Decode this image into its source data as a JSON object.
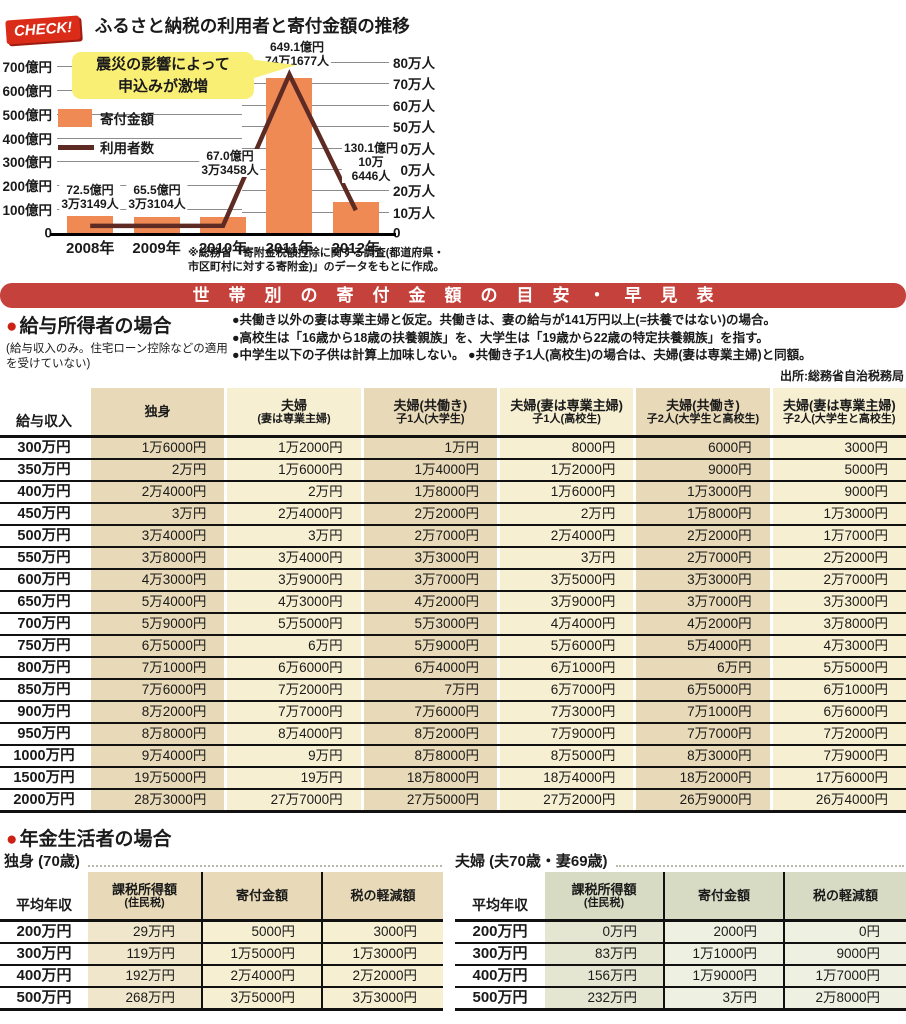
{
  "colors": {
    "bar": "#ef8a55",
    "line": "#5d2a24",
    "callout": "#f9ef75",
    "banner": "#c5423c",
    "badge": "#da2c18",
    "tan": "#e8dab8",
    "cream": "#f6efd2",
    "tan_light": "#efe6cb",
    "green_head": "#d8dbc4",
    "green_mid": "#e4e6d2",
    "green_light": "#eef0e1"
  },
  "chart": {
    "badge": "CHECK!",
    "title": "ふるさと納税の利用者と寄付金額の推移",
    "callout_line1": "震災の影響によって",
    "callout_line2": "申込みが激増",
    "legend_bar": "寄付金額",
    "legend_line": "利用者数",
    "left_axis_labels": [
      "700億円",
      "600億円",
      "500億円",
      "400億円",
      "300億円",
      "200億円",
      "100億円",
      "0"
    ],
    "right_axis_labels": [
      "80万人",
      "70万人",
      "60万人",
      "50万人",
      "40万人",
      "30万人",
      "20万人",
      "10万人",
      "0"
    ],
    "annotations": [
      [
        "72.5億円",
        "3万3149人"
      ],
      [
        "65.5億円",
        "3万3104人"
      ],
      [
        "67.0億円",
        "3万3458人"
      ],
      [
        "649.1億円",
        "74万1677人"
      ],
      [
        "130.1億円",
        "10万",
        "6446人"
      ]
    ],
    "footnote_line1": "※総務省「寄附金税額控除に関する調査(都道府県・",
    "footnote_line2": "市区町村に対する寄附金)」のデータをもとに作成。"
  },
  "chart_data": {
    "type": "bar+line",
    "title": "ふるさと納税の利用者と寄付金額の推移",
    "categories": [
      "2008年",
      "2009年",
      "2010年",
      "2011年",
      "2012年"
    ],
    "series": [
      {
        "name": "寄付金額",
        "type": "bar",
        "unit": "億円",
        "values": [
          72.5,
          65.5,
          67.0,
          649.1,
          130.1
        ]
      },
      {
        "name": "利用者数",
        "type": "line",
        "unit": "人",
        "values": [
          33149,
          33104,
          33458,
          741677,
          106446
        ]
      }
    ],
    "left_axis_max": 700,
    "right_axis_max": 800000,
    "grid": true,
    "legend_position": "left-inside"
  },
  "banner": {
    "title": "世帯別の寄付金額の目安・早見表"
  },
  "salary": {
    "bullet": "●",
    "heading": "給与所得者の場合",
    "subnote": "(給与収入のみ。住宅ローン控除などの適用を受けていない)",
    "note1": "●共働き以外の妻は専業主婦と仮定。共働きは、妻の給与が141万円以上(=扶養ではない)の場合。",
    "note2": "●高校生は「16歳から18歳の扶養親族」を、大学生は「19歳から22歳の特定扶養親族」を指す。",
    "note3": "●中学生以下の子供は計算上加味しない。 ●共働き子1人(高校生)の場合は、夫婦(妻は専業主婦)と同額。",
    "source": "出所:総務省自治税務局"
  },
  "salary_table": {
    "col1": "給与収入",
    "columns": [
      {
        "l1": "独身",
        "l2": ""
      },
      {
        "l1": "夫婦",
        "l2": "(妻は専業主婦)"
      },
      {
        "l1": "夫婦(共働き)",
        "l2": "子1人(大学生)"
      },
      {
        "l1": "夫婦(妻は専業主婦)",
        "l2": "子1人(高校生)"
      },
      {
        "l1": "夫婦(共働き)",
        "l2": "子2人(大学生と高校生)"
      },
      {
        "l1": "夫婦(妻は専業主婦)",
        "l2": "子2人(大学生と高校生)"
      }
    ],
    "rows": [
      {
        "income": "300万円",
        "values": [
          "1万6000円",
          "1万2000円",
          "1万円",
          "8000円",
          "6000円",
          "3000円"
        ]
      },
      {
        "income": "350万円",
        "values": [
          "2万円",
          "1万6000円",
          "1万4000円",
          "1万2000円",
          "9000円",
          "5000円"
        ]
      },
      {
        "income": "400万円",
        "values": [
          "2万4000円",
          "2万円",
          "1万8000円",
          "1万6000円",
          "1万3000円",
          "9000円"
        ]
      },
      {
        "income": "450万円",
        "values": [
          "3万円",
          "2万4000円",
          "2万2000円",
          "2万円",
          "1万8000円",
          "1万3000円"
        ]
      },
      {
        "income": "500万円",
        "values": [
          "3万4000円",
          "3万円",
          "2万7000円",
          "2万4000円",
          "2万2000円",
          "1万7000円"
        ]
      },
      {
        "income": "550万円",
        "values": [
          "3万8000円",
          "3万4000円",
          "3万3000円",
          "3万円",
          "2万7000円",
          "2万2000円"
        ]
      },
      {
        "income": "600万円",
        "values": [
          "4万3000円",
          "3万9000円",
          "3万7000円",
          "3万5000円",
          "3万3000円",
          "2万7000円"
        ]
      },
      {
        "income": "650万円",
        "values": [
          "5万4000円",
          "4万3000円",
          "4万2000円",
          "3万9000円",
          "3万7000円",
          "3万3000円"
        ]
      },
      {
        "income": "700万円",
        "values": [
          "5万9000円",
          "5万5000円",
          "5万3000円",
          "4万4000円",
          "4万2000円",
          "3万8000円"
        ]
      },
      {
        "income": "750万円",
        "values": [
          "6万5000円",
          "6万円",
          "5万9000円",
          "5万6000円",
          "5万4000円",
          "4万3000円"
        ]
      },
      {
        "income": "800万円",
        "values": [
          "7万1000円",
          "6万6000円",
          "6万4000円",
          "6万1000円",
          "6万円",
          "5万5000円"
        ]
      },
      {
        "income": "850万円",
        "values": [
          "7万6000円",
          "7万2000円",
          "7万円",
          "6万7000円",
          "6万5000円",
          "6万1000円"
        ]
      },
      {
        "income": "900万円",
        "values": [
          "8万2000円",
          "7万7000円",
          "7万6000円",
          "7万3000円",
          "7万1000円",
          "6万6000円"
        ]
      },
      {
        "income": "950万円",
        "values": [
          "8万8000円",
          "8万4000円",
          "8万2000円",
          "7万9000円",
          "7万7000円",
          "7万2000円"
        ]
      },
      {
        "income": "1000万円",
        "values": [
          "9万4000円",
          "9万円",
          "8万8000円",
          "8万5000円",
          "8万3000円",
          "7万9000円"
        ]
      },
      {
        "income": "1500万円",
        "values": [
          "19万5000円",
          "19万円",
          "18万8000円",
          "18万4000円",
          "18万2000円",
          "17万6000円"
        ]
      },
      {
        "income": "2000万円",
        "values": [
          "28万3000円",
          "27万7000円",
          "27万5000円",
          "27万2000円",
          "26万9000円",
          "26万4000円"
        ]
      }
    ]
  },
  "pension": {
    "bullet": "●",
    "heading": "年金生活者の場合",
    "left": {
      "caption": "独身 (70歳)",
      "col1": "平均年収",
      "col2a": "課税所得額",
      "col2b": "(住民税)",
      "col3": "寄付金額",
      "col4": "税の軽減額",
      "rows": [
        {
          "income": "200万円",
          "values": [
            "29万円",
            "5000円",
            "3000円"
          ]
        },
        {
          "income": "300万円",
          "values": [
            "119万円",
            "1万5000円",
            "1万3000円"
          ]
        },
        {
          "income": "400万円",
          "values": [
            "192万円",
            "2万4000円",
            "2万2000円"
          ]
        },
        {
          "income": "500万円",
          "values": [
            "268万円",
            "3万5000円",
            "3万3000円"
          ]
        }
      ]
    },
    "right": {
      "caption": "夫婦 (夫70歳・妻69歳)",
      "col1": "平均年収",
      "col2a": "課税所得額",
      "col2b": "(住民税)",
      "col3": "寄付金額",
      "col4": "税の軽減額",
      "rows": [
        {
          "income": "200万円",
          "values": [
            "0万円",
            "2000円",
            "0円"
          ]
        },
        {
          "income": "300万円",
          "values": [
            "83万円",
            "1万1000円",
            "9000円"
          ]
        },
        {
          "income": "400万円",
          "values": [
            "156万円",
            "1万9000円",
            "1万7000円"
          ]
        },
        {
          "income": "500万円",
          "values": [
            "232万円",
            "3万円",
            "2万8000円"
          ]
        }
      ]
    }
  }
}
